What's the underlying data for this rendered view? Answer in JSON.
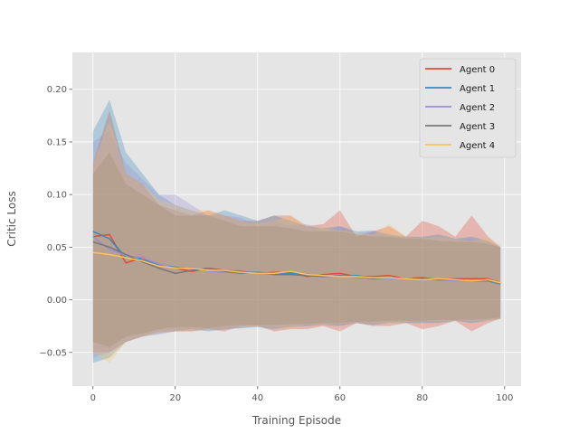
{
  "chart_data": {
    "type": "line",
    "title": "",
    "xlabel": "Training Episode",
    "ylabel": "Critic Loss",
    "xlim": [
      -5,
      104
    ],
    "ylim": [
      -0.082,
      0.235
    ],
    "xticks": [
      0,
      20,
      40,
      60,
      80,
      100
    ],
    "xtick_labels": [
      "0",
      "20",
      "40",
      "60",
      "80",
      "100"
    ],
    "yticks": [
      -0.05,
      0.0,
      0.05,
      0.1,
      0.15,
      0.2
    ],
    "ytick_labels": [
      "−0.05",
      "0.00",
      "0.05",
      "0.10",
      "0.15",
      "0.20"
    ],
    "grid": true,
    "legend_position": "top-right",
    "background_color": "#e5e5e5",
    "grid_color": "#ffffff",
    "band_opacity": 0.3,
    "series": [
      {
        "name": "Agent 0",
        "color": "#e24a33",
        "x": [
          0,
          4,
          8,
          12,
          16,
          20,
          24,
          28,
          32,
          36,
          40,
          44,
          48,
          52,
          56,
          60,
          64,
          68,
          72,
          76,
          80,
          84,
          88,
          92,
          96,
          99
        ],
        "values": [
          0.06,
          0.062,
          0.035,
          0.04,
          0.032,
          0.03,
          0.027,
          0.03,
          0.028,
          0.027,
          0.025,
          0.026,
          0.026,
          0.022,
          0.024,
          0.025,
          0.022,
          0.022,
          0.023,
          0.02,
          0.021,
          0.019,
          0.02,
          0.02,
          0.02,
          0.016
        ],
        "band_upper": [
          0.13,
          0.18,
          0.12,
          0.11,
          0.09,
          0.085,
          0.08,
          0.085,
          0.08,
          0.075,
          0.075,
          0.08,
          0.08,
          0.07,
          0.072,
          0.085,
          0.06,
          0.065,
          0.07,
          0.06,
          0.075,
          0.07,
          0.06,
          0.08,
          0.06,
          0.05
        ],
        "band_lower": [
          -0.05,
          -0.05,
          -0.04,
          -0.035,
          -0.03,
          -0.03,
          -0.03,
          -0.028,
          -0.03,
          -0.025,
          -0.025,
          -0.03,
          -0.028,
          -0.028,
          -0.025,
          -0.03,
          -0.022,
          -0.025,
          -0.025,
          -0.022,
          -0.028,
          -0.025,
          -0.02,
          -0.03,
          -0.022,
          -0.018
        ]
      },
      {
        "name": "Agent 1",
        "color": "#348abd",
        "x": [
          0,
          4,
          8,
          12,
          16,
          20,
          24,
          28,
          32,
          36,
          40,
          44,
          48,
          52,
          56,
          60,
          64,
          68,
          72,
          76,
          80,
          84,
          88,
          92,
          96,
          99
        ],
        "values": [
          0.065,
          0.058,
          0.04,
          0.038,
          0.033,
          0.031,
          0.03,
          0.028,
          0.027,
          0.026,
          0.026,
          0.025,
          0.025,
          0.024,
          0.023,
          0.022,
          0.023,
          0.021,
          0.021,
          0.02,
          0.02,
          0.019,
          0.019,
          0.018,
          0.018,
          0.015
        ],
        "band_upper": [
          0.16,
          0.19,
          0.14,
          0.12,
          0.1,
          0.09,
          0.085,
          0.08,
          0.085,
          0.08,
          0.075,
          0.08,
          0.075,
          0.07,
          0.068,
          0.07,
          0.065,
          0.066,
          0.062,
          0.06,
          0.06,
          0.062,
          0.058,
          0.06,
          0.056,
          0.05
        ],
        "band_lower": [
          -0.06,
          -0.055,
          -0.04,
          -0.035,
          -0.032,
          -0.03,
          -0.028,
          -0.03,
          -0.028,
          -0.027,
          -0.026,
          -0.028,
          -0.026,
          -0.025,
          -0.024,
          -0.025,
          -0.022,
          -0.024,
          -0.022,
          -0.022,
          -0.022,
          -0.022,
          -0.02,
          -0.022,
          -0.02,
          -0.018
        ]
      },
      {
        "name": "Agent 2",
        "color": "#988ed5",
        "x": [
          0,
          4,
          8,
          12,
          16,
          20,
          24,
          28,
          32,
          36,
          40,
          44,
          48,
          52,
          56,
          60,
          64,
          68,
          72,
          76,
          80,
          84,
          88,
          92,
          96,
          99
        ],
        "values": [
          0.06,
          0.048,
          0.042,
          0.04,
          0.034,
          0.03,
          0.031,
          0.027,
          0.026,
          0.026,
          0.025,
          0.024,
          0.024,
          0.023,
          0.022,
          0.023,
          0.021,
          0.021,
          0.02,
          0.02,
          0.019,
          0.019,
          0.018,
          0.018,
          0.018,
          0.016
        ],
        "band_upper": [
          0.15,
          0.16,
          0.13,
          0.115,
          0.1,
          0.1,
          0.09,
          0.08,
          0.08,
          0.078,
          0.07,
          0.075,
          0.07,
          0.072,
          0.065,
          0.07,
          0.063,
          0.065,
          0.06,
          0.06,
          0.058,
          0.06,
          0.056,
          0.058,
          0.055,
          0.05
        ],
        "band_lower": [
          -0.055,
          -0.05,
          -0.04,
          -0.035,
          -0.033,
          -0.03,
          -0.03,
          -0.028,
          -0.027,
          -0.027,
          -0.025,
          -0.026,
          -0.025,
          -0.025,
          -0.023,
          -0.024,
          -0.022,
          -0.022,
          -0.021,
          -0.021,
          -0.02,
          -0.021,
          -0.02,
          -0.02,
          -0.019,
          -0.018
        ]
      },
      {
        "name": "Agent 3",
        "color": "#777777",
        "x": [
          0,
          4,
          8,
          12,
          16,
          20,
          24,
          28,
          32,
          36,
          40,
          44,
          48,
          52,
          56,
          60,
          64,
          68,
          72,
          76,
          80,
          84,
          88,
          92,
          96,
          99
        ],
        "values": [
          0.055,
          0.05,
          0.043,
          0.036,
          0.03,
          0.025,
          0.028,
          0.03,
          0.027,
          0.025,
          0.026,
          0.024,
          0.024,
          0.023,
          0.022,
          0.023,
          0.022,
          0.02,
          0.021,
          0.02,
          0.02,
          0.019,
          0.019,
          0.018,
          0.018,
          0.016
        ],
        "band_upper": [
          0.12,
          0.14,
          0.11,
          0.1,
          0.09,
          0.08,
          0.08,
          0.08,
          0.075,
          0.07,
          0.07,
          0.07,
          0.068,
          0.065,
          0.065,
          0.065,
          0.062,
          0.06,
          0.06,
          0.058,
          0.058,
          0.056,
          0.055,
          0.055,
          0.053,
          0.05
        ],
        "band_lower": [
          -0.04,
          -0.045,
          -0.035,
          -0.032,
          -0.028,
          -0.026,
          -0.026,
          -0.027,
          -0.025,
          -0.024,
          -0.024,
          -0.024,
          -0.023,
          -0.023,
          -0.022,
          -0.022,
          -0.021,
          -0.021,
          -0.02,
          -0.02,
          -0.02,
          -0.019,
          -0.019,
          -0.019,
          -0.018,
          -0.017
        ]
      },
      {
        "name": "Agent 4",
        "color": "#fbc15e",
        "x": [
          0,
          4,
          8,
          12,
          16,
          20,
          24,
          28,
          32,
          36,
          40,
          44,
          48,
          52,
          56,
          60,
          64,
          68,
          72,
          76,
          80,
          84,
          88,
          92,
          96,
          99
        ],
        "values": [
          0.045,
          0.043,
          0.04,
          0.037,
          0.032,
          0.03,
          0.03,
          0.028,
          0.028,
          0.026,
          0.025,
          0.025,
          0.027,
          0.024,
          0.023,
          0.022,
          0.022,
          0.021,
          0.021,
          0.02,
          0.019,
          0.02,
          0.019,
          0.018,
          0.019,
          0.016
        ],
        "band_upper": [
          0.13,
          0.17,
          0.12,
          0.11,
          0.095,
          0.09,
          0.085,
          0.085,
          0.08,
          0.075,
          0.072,
          0.075,
          0.08,
          0.07,
          0.068,
          0.066,
          0.064,
          0.062,
          0.072,
          0.06,
          0.058,
          0.06,
          0.057,
          0.056,
          0.058,
          0.052
        ],
        "band_lower": [
          -0.05,
          -0.06,
          -0.04,
          -0.035,
          -0.032,
          -0.03,
          -0.03,
          -0.028,
          -0.027,
          -0.026,
          -0.025,
          -0.026,
          -0.027,
          -0.024,
          -0.024,
          -0.023,
          -0.022,
          -0.022,
          -0.023,
          -0.021,
          -0.02,
          -0.021,
          -0.02,
          -0.02,
          -0.02,
          -0.018
        ]
      }
    ]
  }
}
